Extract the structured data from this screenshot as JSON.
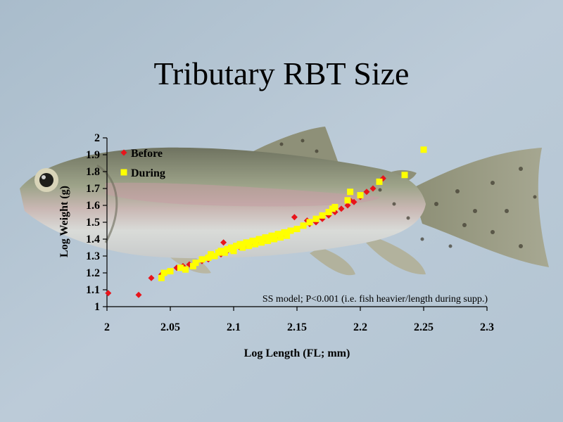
{
  "slide": {
    "title": "Tributary RBT Size"
  },
  "colors": {
    "background": "#b9c9d6",
    "before": "#e8141b",
    "during": "#ffff00"
  },
  "chart_data": {
    "type": "scatter",
    "title": "",
    "xlabel": "Log Length (FL; mm)",
    "ylabel": "Log Weight (g)",
    "xlim": [
      2,
      2.3
    ],
    "ylim": [
      1,
      2
    ],
    "xticks": [
      "2",
      "2.05",
      "2.1",
      "2.15",
      "2.2",
      "2.25",
      "2.3"
    ],
    "yticks": [
      "1",
      "1.1",
      "1.2",
      "1.3",
      "1.4",
      "1.5",
      "1.6",
      "1.7",
      "1.8",
      "1.9",
      "2"
    ],
    "legend_position": "top-left",
    "annotation": "SS model; P<0.001 (i.e. fish heavier/length during supp.)",
    "series": [
      {
        "name": "Before",
        "marker": "diamond",
        "color": "#e8141b",
        "points": [
          [
            2.001,
            1.08
          ],
          [
            2.025,
            1.07
          ],
          [
            2.035,
            1.17
          ],
          [
            2.043,
            1.19
          ],
          [
            2.05,
            1.21
          ],
          [
            2.055,
            1.23
          ],
          [
            2.06,
            1.24
          ],
          [
            2.065,
            1.25
          ],
          [
            2.07,
            1.26
          ],
          [
            2.075,
            1.27
          ],
          [
            2.08,
            1.28
          ],
          [
            2.085,
            1.3
          ],
          [
            2.09,
            1.31
          ],
          [
            2.092,
            1.38
          ],
          [
            2.095,
            1.33
          ],
          [
            2.1,
            1.34
          ],
          [
            2.105,
            1.35
          ],
          [
            2.11,
            1.36
          ],
          [
            2.115,
            1.38
          ],
          [
            2.12,
            1.39
          ],
          [
            2.125,
            1.4
          ],
          [
            2.13,
            1.42
          ],
          [
            2.135,
            1.42
          ],
          [
            2.14,
            1.43
          ],
          [
            2.145,
            1.45
          ],
          [
            2.148,
            1.53
          ],
          [
            2.15,
            1.46
          ],
          [
            2.155,
            1.48
          ],
          [
            2.158,
            1.51
          ],
          [
            2.16,
            1.49
          ],
          [
            2.165,
            1.5
          ],
          [
            2.17,
            1.52
          ],
          [
            2.175,
            1.54
          ],
          [
            2.18,
            1.56
          ],
          [
            2.185,
            1.58
          ],
          [
            2.19,
            1.6
          ],
          [
            2.192,
            1.63
          ],
          [
            2.195,
            1.62
          ],
          [
            2.2,
            1.65
          ],
          [
            2.205,
            1.68
          ],
          [
            2.21,
            1.7
          ],
          [
            2.215,
            1.74
          ],
          [
            2.218,
            1.76
          ]
        ]
      },
      {
        "name": "During",
        "marker": "square",
        "color": "#ffff00",
        "points": [
          [
            2.043,
            1.17
          ],
          [
            2.045,
            1.2
          ],
          [
            2.05,
            1.21
          ],
          [
            2.058,
            1.23
          ],
          [
            2.062,
            1.22
          ],
          [
            2.068,
            1.24
          ],
          [
            2.07,
            1.26
          ],
          [
            2.075,
            1.28
          ],
          [
            2.08,
            1.29
          ],
          [
            2.082,
            1.31
          ],
          [
            2.085,
            1.3
          ],
          [
            2.088,
            1.32
          ],
          [
            2.09,
            1.33
          ],
          [
            2.093,
            1.32
          ],
          [
            2.095,
            1.34
          ],
          [
            2.098,
            1.35
          ],
          [
            2.1,
            1.33
          ],
          [
            2.102,
            1.36
          ],
          [
            2.105,
            1.37
          ],
          [
            2.107,
            1.35
          ],
          [
            2.11,
            1.38
          ],
          [
            2.112,
            1.36
          ],
          [
            2.115,
            1.39
          ],
          [
            2.117,
            1.37
          ],
          [
            2.12,
            1.4
          ],
          [
            2.122,
            1.38
          ],
          [
            2.125,
            1.41
          ],
          [
            2.127,
            1.39
          ],
          [
            2.13,
            1.42
          ],
          [
            2.132,
            1.4
          ],
          [
            2.135,
            1.43
          ],
          [
            2.137,
            1.41
          ],
          [
            2.14,
            1.44
          ],
          [
            2.142,
            1.42
          ],
          [
            2.145,
            1.45
          ],
          [
            2.15,
            1.46
          ],
          [
            2.155,
            1.48
          ],
          [
            2.16,
            1.5
          ],
          [
            2.165,
            1.52
          ],
          [
            2.17,
            1.54
          ],
          [
            2.175,
            1.56
          ],
          [
            2.178,
            1.58
          ],
          [
            2.18,
            1.59
          ],
          [
            2.19,
            1.63
          ],
          [
            2.192,
            1.68
          ],
          [
            2.2,
            1.66
          ],
          [
            2.215,
            1.74
          ],
          [
            2.235,
            1.78
          ],
          [
            2.25,
            1.93
          ]
        ]
      }
    ]
  }
}
